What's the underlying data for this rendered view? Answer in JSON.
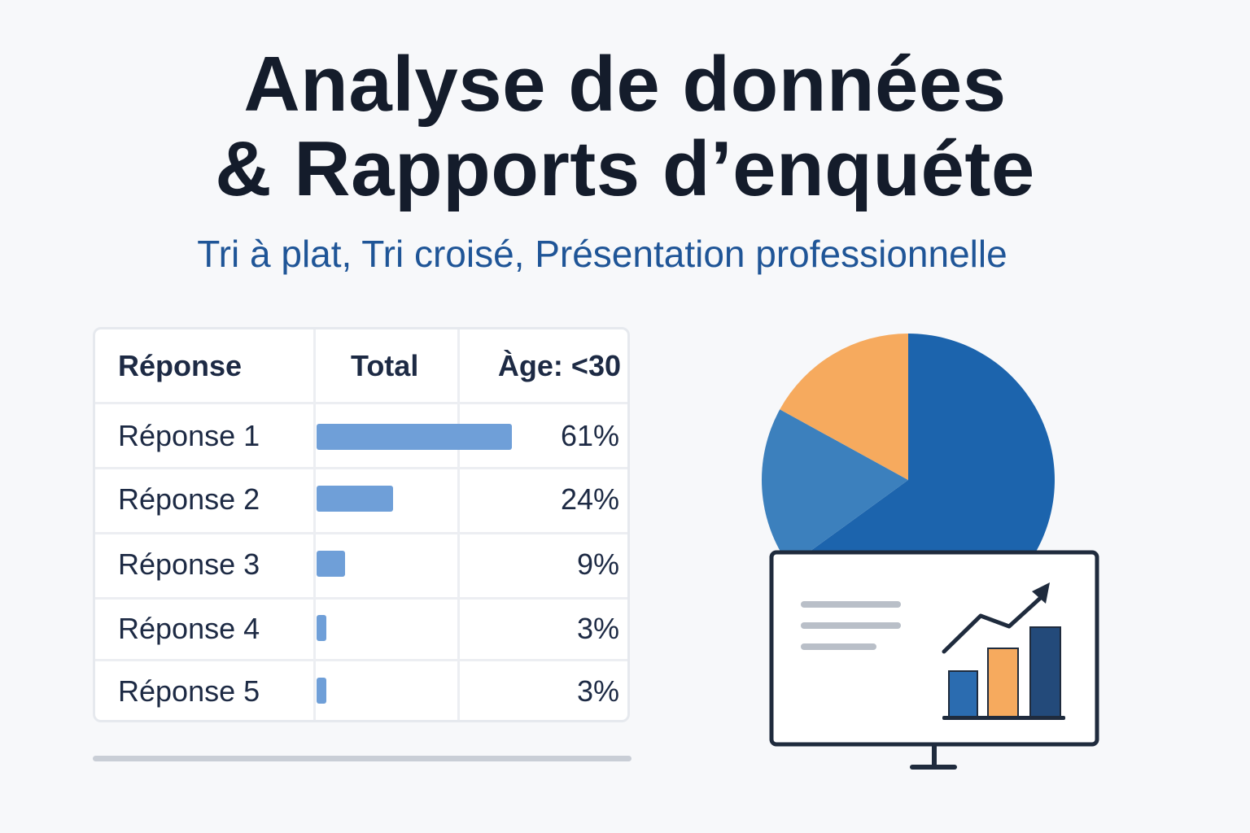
{
  "header": {
    "title_line1": "Analyse de données",
    "title_line2": "& Rapports d’enquéte",
    "subtitle": "Tri à plat, Tri croisé, Présentation professionnelle"
  },
  "table": {
    "headers": [
      "Réponse",
      "Total",
      "Àge: <30"
    ],
    "rows": [
      {
        "label": "Réponse 1",
        "value": "61%",
        "share": 0.61
      },
      {
        "label": "Réponse 2",
        "value": "24%",
        "share": 0.24
      },
      {
        "label": "Réponse 3",
        "value": "9%",
        "share": 0.09
      },
      {
        "label": "Réponse 4",
        "value": "3%",
        "share": 0.03
      },
      {
        "label": "Réponse 5",
        "value": "3%",
        "share": 0.03
      }
    ],
    "bar_color": "#6f9fd8"
  },
  "pie": {
    "slices": [
      {
        "share": 0.65,
        "color": "#1c64ad"
      },
      {
        "share": 0.18,
        "color": "#3c80bd"
      },
      {
        "share": 0.17,
        "color": "#f6aa5e"
      }
    ]
  },
  "monitor": {
    "icons": [
      "text-lines-icon",
      "trend-arrow-icon",
      "bar-chart-icon"
    ],
    "bar_colors": [
      "#2b6cb0",
      "#f6aa5e",
      "#234a7a"
    ],
    "frame_color": "#1f2b3d"
  }
}
